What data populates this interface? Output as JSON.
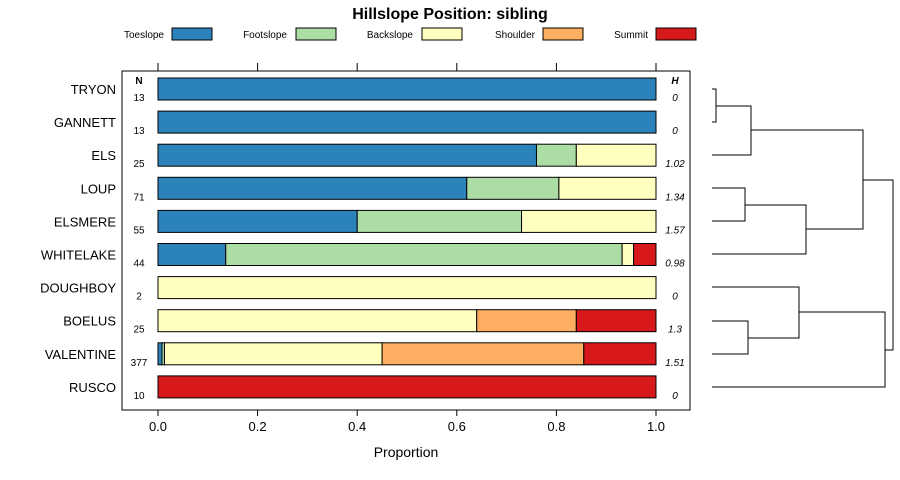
{
  "chart_data": {
    "type": "bar",
    "stacked": true,
    "orientation": "horizontal",
    "title": "Hillslope Position: sibling",
    "xlabel": "Proportion",
    "ylabel": "",
    "xlim": [
      0,
      1
    ],
    "xticks": [
      "0.0",
      "0.2",
      "0.4",
      "0.6",
      "0.8",
      "1.0"
    ],
    "n_header": "N",
    "h_header": "H",
    "legend": [
      {
        "name": "Toeslope",
        "color": "#2b83ba"
      },
      {
        "name": "Footslope",
        "color": "#abdda4"
      },
      {
        "name": "Backslope",
        "color": "#ffffbf"
      },
      {
        "name": "Shoulder",
        "color": "#fdae61"
      },
      {
        "name": "Summit",
        "color": "#d7191c"
      }
    ],
    "categories": [
      "TRYON",
      "GANNETT",
      "ELS",
      "LOUP",
      "ELSMERE",
      "WHITELAKE",
      "DOUGHBOY",
      "BOELUS",
      "VALENTINE",
      "RUSCO"
    ],
    "n": [
      "13",
      "13",
      "25",
      "71",
      "55",
      "44",
      "2",
      "25",
      "377",
      "10"
    ],
    "h": [
      "0",
      "0",
      "1.02",
      "1.34",
      "1.57",
      "0.98",
      "0",
      "1.3",
      "1.51",
      "0"
    ],
    "series": [
      {
        "name": "Toeslope",
        "values": [
          1.0,
          1.0,
          0.76,
          0.62,
          0.4,
          0.136,
          0.0,
          0.0,
          0.008,
          0.0
        ]
      },
      {
        "name": "Footslope",
        "values": [
          0.0,
          0.0,
          0.08,
          0.185,
          0.33,
          0.796,
          0.0,
          0.0,
          0.005,
          0.0
        ]
      },
      {
        "name": "Backslope",
        "values": [
          0.0,
          0.0,
          0.16,
          0.195,
          0.27,
          0.023,
          1.0,
          0.64,
          0.437,
          0.0
        ]
      },
      {
        "name": "Shoulder",
        "values": [
          0.0,
          0.0,
          0.0,
          0.0,
          0.0,
          0.0,
          0.0,
          0.2,
          0.405,
          0.0
        ]
      },
      {
        "name": "Summit",
        "values": [
          0.0,
          0.0,
          0.0,
          0.0,
          0.0,
          0.045,
          0.0,
          0.16,
          0.145,
          1.0
        ]
      }
    ]
  }
}
